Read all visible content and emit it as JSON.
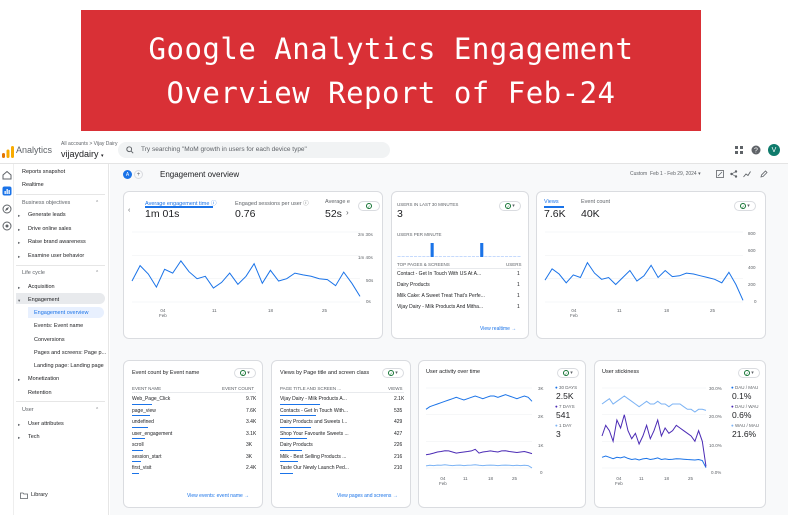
{
  "banner": {
    "line1": "Google Analytics Engagement",
    "line2": "Overview Report of Feb-24"
  },
  "topbar": {
    "app_name": "Analytics",
    "account_crumb": "All accounts > Vijay Dairy",
    "account_name": "vijaydairy",
    "search_placeholder": "Try searching \"MoM growth in users for each device type\"",
    "avatar_letter": "V"
  },
  "nav": {
    "reports_snapshot": "Reports snapshot",
    "realtime": "Realtime",
    "business_objectives": "Business objectives",
    "generate_leads": "Generate leads",
    "drive_online_sales": "Drive online sales",
    "raise_brand_awareness": "Raise brand awareness",
    "examine_user_behavior": "Examine user behavior",
    "life_cycle": "Life cycle",
    "acquisition": "Acquisition",
    "engagement": "Engagement",
    "engagement_overview": "Engagement overview",
    "events": "Events: Event name",
    "conversions": "Conversions",
    "pages_and_screens": "Pages and screens: Page p...",
    "landing_page": "Landing page: Landing page",
    "monetization": "Monetization",
    "retention": "Retention",
    "user": "User",
    "user_attributes": "User attributes",
    "tech": "Tech",
    "library": "Library"
  },
  "header": {
    "compare_badge": "A",
    "title": "Engagement overview",
    "date_custom": "Custom",
    "date_range": "Feb 1 - Feb 29, 2024"
  },
  "engagement_card": {
    "metrics": [
      {
        "label": "Average engagement time",
        "value": "1m 01s"
      },
      {
        "label": "Engaged sessions per user",
        "value": "0.76"
      },
      {
        "label": "Average e",
        "value": "52s"
      }
    ],
    "y_ticks": [
      "2m 30s",
      "1m 40s",
      "50s",
      "0s"
    ],
    "x_ticks": [
      "04\nFeb",
      "11",
      "18",
      "25"
    ],
    "chart_data": {
      "type": "line",
      "series": [
        {
          "values": [
            45,
            78,
            60,
            32,
            70,
            62,
            88,
            65,
            50,
            55,
            30,
            42,
            62,
            38,
            55,
            82,
            40,
            68,
            45,
            50,
            62,
            58,
            55,
            50,
            48,
            35,
            64,
            40,
            12
          ]
        }
      ],
      "ylim": [
        0,
        150
      ]
    }
  },
  "realtime_card": {
    "label": "USERS IN LAST 30 MINUTES",
    "value": "3",
    "per_minute_label": "USERS PER MINUTE",
    "per_minute_bars": [
      0,
      0,
      0,
      0,
      0,
      0,
      0,
      0,
      1,
      0,
      0,
      0,
      0,
      0,
      0,
      0,
      0,
      0,
      0,
      0,
      1,
      0,
      0,
      0,
      0,
      0,
      0,
      0,
      0,
      0
    ],
    "table_header": [
      "TOP PAGES & SCREENS",
      "USERS"
    ],
    "rows": [
      {
        "name": "Contact - Get In Touch With US At A...",
        "users": "1"
      },
      {
        "name": "Dairy Products",
        "users": "1"
      },
      {
        "name": "Milk Cake: A Sweet Treat That's Perfe...",
        "users": "1"
      },
      {
        "name": "Vijay Dairy - Milk Products And Mitha...",
        "users": "1"
      }
    ],
    "link": "View realtime"
  },
  "views_card": {
    "metrics": [
      {
        "label": "Views",
        "value": "7.6K"
      },
      {
        "label": "Event count",
        "value": "40K"
      }
    ],
    "y_ticks": [
      "800",
      "600",
      "400",
      "200",
      "0"
    ],
    "x_ticks": [
      "04\nFeb",
      "11",
      "18",
      "25"
    ],
    "chart_data": {
      "type": "line",
      "series": [
        {
          "values": [
            250,
            380,
            320,
            220,
            310,
            280,
            450,
            330,
            260,
            280,
            200,
            280,
            360,
            240,
            300,
            420,
            280,
            360,
            290,
            300,
            330,
            320,
            300,
            280,
            260,
            220,
            340,
            200,
            20
          ]
        }
      ],
      "ylim": [
        0,
        800
      ]
    }
  },
  "events_card": {
    "title": "Event count by Event name",
    "header": [
      "EVENT NAME",
      "EVENT COUNT"
    ],
    "rows": [
      {
        "name": "Web_Page_Click",
        "count": "9.7K"
      },
      {
        "name": "page_view",
        "count": "7.6K"
      },
      {
        "name": "undefined",
        "count": "3.4K"
      },
      {
        "name": "user_engagement",
        "count": "3.1K"
      },
      {
        "name": "scroll",
        "count": "3K"
      },
      {
        "name": "session_start",
        "count": "3K"
      },
      {
        "name": "first_visit",
        "count": "2.4K"
      }
    ],
    "link": "View events: event name"
  },
  "pages_card": {
    "title": "Views by Page title and screen class",
    "header": [
      "PAGE TITLE AND SCREEN ...",
      "VIEWS"
    ],
    "rows": [
      {
        "name": "Vijay Dairy - Milk Products A...",
        "views": "2.1K"
      },
      {
        "name": "Contacts - Get In Touch With...",
        "views": "535"
      },
      {
        "name": "Dairy Products and Sweets I...",
        "views": "429"
      },
      {
        "name": "Shop Your Favourite Sweets ...",
        "views": "427"
      },
      {
        "name": "Dairy Products",
        "views": "226"
      },
      {
        "name": "Milk - Best Selling Products ...",
        "views": "216"
      },
      {
        "name": "Taste Our Newly Launch Ped...",
        "views": "210"
      }
    ],
    "link": "View pages and screens"
  },
  "activity_card": {
    "title": "User activity over time",
    "y_ticks": [
      "3K",
      "2K",
      "1K",
      "0"
    ],
    "x_ticks": [
      "04\nFeb",
      "11",
      "18",
      "25"
    ],
    "legend": [
      {
        "label": "30 DAYS",
        "value": "2.5K",
        "color": "#1a73e8"
      },
      {
        "label": "7 DAYS",
        "value": "541",
        "color": "#4b2bb5"
      },
      {
        "label": "1 DAY",
        "value": "3",
        "color": "#7cb3f4"
      }
    ],
    "chart_data": {
      "type": "line",
      "series": [
        {
          "values": [
            2200,
            2300,
            2350,
            2400,
            2450,
            2500,
            2550,
            2600,
            2650,
            2600,
            2550,
            2600,
            2650,
            2700,
            2650,
            2600,
            2650,
            2700,
            2700,
            2650,
            2700,
            2750,
            2700,
            2650,
            2600,
            2650,
            2700,
            2650,
            2500
          ]
        },
        {
          "values": [
            500,
            520,
            560,
            600,
            620,
            650,
            640,
            600,
            560,
            580,
            600,
            620,
            640,
            700,
            560,
            600,
            620,
            640,
            620,
            600,
            640,
            650,
            620,
            600,
            580,
            600,
            620,
            580,
            540
          ]
        },
        {
          "values": [
            80,
            100,
            90,
            110,
            100,
            120,
            100,
            90,
            100,
            110,
            90,
            100,
            110,
            120,
            100,
            90,
            100,
            110,
            100,
            90,
            100,
            110,
            100,
            90,
            100,
            90,
            100,
            90,
            3
          ]
        }
      ],
      "ylim": [
        0,
        3000
      ]
    }
  },
  "stickiness_card": {
    "title": "User stickiness",
    "y_ticks": [
      "30.0%",
      "20.0%",
      "10.0%",
      "0.0%"
    ],
    "x_ticks": [
      "04\nFeb",
      "11",
      "18",
      "25"
    ],
    "legend": [
      {
        "label": "DAU / MAU",
        "value": "0.1%",
        "color": "#1a73e8"
      },
      {
        "label": "DAU / WAU",
        "value": "0.6%",
        "color": "#4b2bb5"
      },
      {
        "label": "WAU / MAU",
        "value": "21.6%",
        "color": "#7cb3f4"
      }
    ],
    "chart_data": {
      "type": "line",
      "series": [
        {
          "values": [
            4,
            4.5,
            4,
            3.5,
            4,
            3.8,
            4.2,
            3.6,
            3.2,
            3.4,
            3,
            3.4,
            3.6,
            3.2,
            3.4,
            3.8,
            3.2,
            3.4,
            3.2,
            3.3,
            3.5,
            3.4,
            3.3,
            3.2,
            3.1,
            3,
            3.2,
            2.8,
            0.1
          ]
        },
        {
          "values": [
            12,
            16,
            14,
            10,
            18,
            15,
            20,
            14,
            11,
            13,
            9,
            12,
            16,
            11,
            14,
            18,
            12,
            15,
            13,
            14,
            16,
            15,
            14,
            13,
            12,
            10,
            14,
            10,
            0.6
          ]
        },
        {
          "values": [
            24,
            25,
            26,
            24,
            25,
            26,
            27,
            26,
            25,
            24,
            23,
            24,
            25,
            24,
            24,
            25,
            24,
            24,
            23,
            24,
            24,
            24,
            23,
            22,
            22,
            21,
            22,
            22,
            21.6
          ]
        }
      ],
      "ylim": [
        0,
        30
      ]
    }
  },
  "colors": {
    "accent": "#1a73e8",
    "banner": "#d93036"
  }
}
